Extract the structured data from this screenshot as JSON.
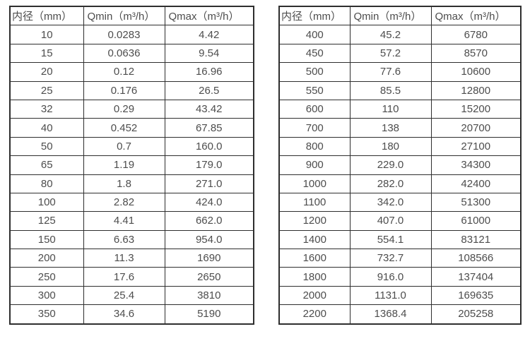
{
  "tables": [
    {
      "name": "small-diameters",
      "headers": [
        "内径（mm）",
        "Qmin（m³/h）",
        "Qmax（m³/h）"
      ],
      "rows": [
        [
          "10",
          "0.0283",
          "4.42"
        ],
        [
          "15",
          "0.0636",
          "9.54"
        ],
        [
          "20",
          "0.12",
          "16.96"
        ],
        [
          "25",
          "0.176",
          "26.5"
        ],
        [
          "32",
          "0.29",
          "43.42"
        ],
        [
          "40",
          "0.452",
          "67.85"
        ],
        [
          "50",
          "0.7",
          "160.0"
        ],
        [
          "65",
          "1.19",
          "179.0"
        ],
        [
          "80",
          "1.8",
          "271.0"
        ],
        [
          "100",
          "2.82",
          "424.0"
        ],
        [
          "125",
          "4.41",
          "662.0"
        ],
        [
          "150",
          "6.63",
          "954.0"
        ],
        [
          "200",
          "11.3",
          "1690"
        ],
        [
          "250",
          "17.6",
          "2650"
        ],
        [
          "300",
          "25.4",
          "3810"
        ],
        [
          "350",
          "34.6",
          "5190"
        ]
      ]
    },
    {
      "name": "large-diameters",
      "headers": [
        "内径（mm）",
        "Qmin（m³/h）",
        "Qmax（m³/h）"
      ],
      "rows": [
        [
          "400",
          "45.2",
          "6780"
        ],
        [
          "450",
          "57.2",
          "8570"
        ],
        [
          "500",
          "77.6",
          "10600"
        ],
        [
          "550",
          "85.5",
          "12800"
        ],
        [
          "600",
          "110",
          "15200"
        ],
        [
          "700",
          "138",
          "20700"
        ],
        [
          "800",
          "180",
          "27100"
        ],
        [
          "900",
          "229.0",
          "34300"
        ],
        [
          "1000",
          "282.0",
          "42400"
        ],
        [
          "1100",
          "342.0",
          "51300"
        ],
        [
          "1200",
          "407.0",
          "61000"
        ],
        [
          "1400",
          "554.1",
          "83121"
        ],
        [
          "1600",
          "732.7",
          "108566"
        ],
        [
          "1800",
          "916.0",
          "137404"
        ],
        [
          "2000",
          "1131.0",
          "169635"
        ],
        [
          "2200",
          "1368.4",
          "205258"
        ]
      ]
    }
  ],
  "colors": {
    "border": "#2e2e2e",
    "text": "#4d4d4d",
    "background": "#ffffff"
  }
}
